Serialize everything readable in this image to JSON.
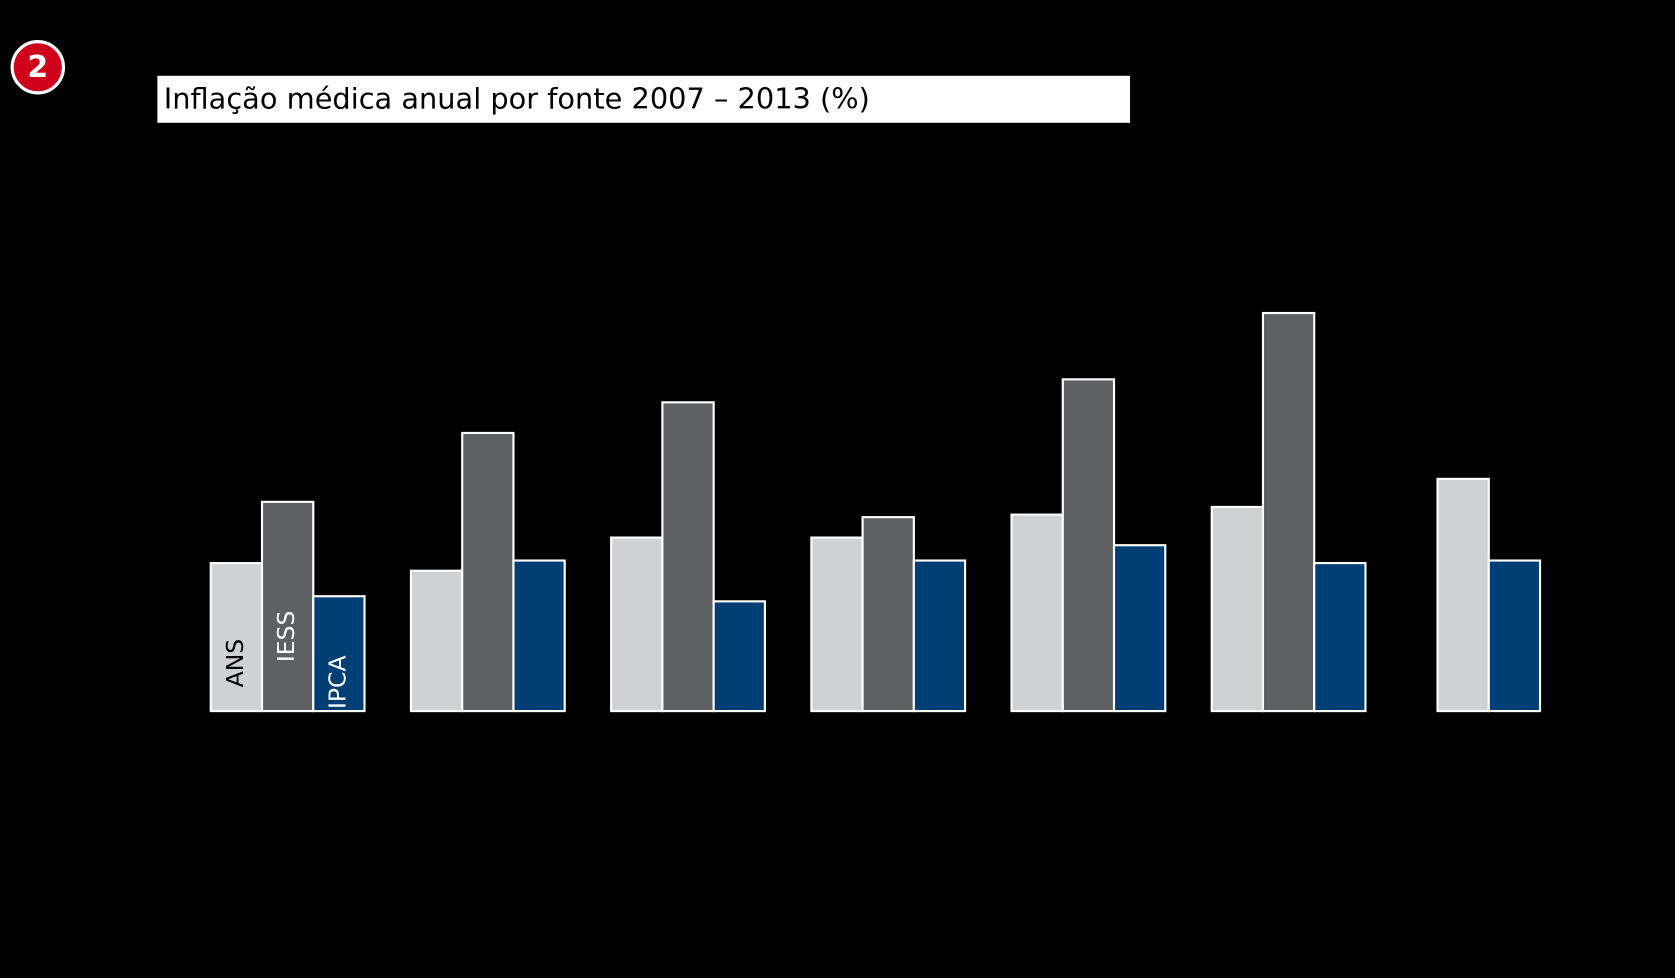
{
  "badge": "2",
  "chart_data": {
    "type": "bar",
    "title": "Inflação médica anual por fonte 2007 – 2013 (%)",
    "categories": [
      null,
      null,
      null,
      null,
      null,
      null,
      null
    ],
    "series": [
      {
        "name": "ANS",
        "color": "#d0d1d3",
        "values": [
          5.8,
          5.5,
          6.8,
          6.8,
          7.7,
          8.0,
          9.1
        ]
      },
      {
        "name": "IESS",
        "color": "#5f6062",
        "values": [
          8.2,
          10.9,
          12.1,
          7.6,
          13.0,
          15.6,
          null
        ]
      },
      {
        "name": "IPCA",
        "color": "#003f75",
        "values": [
          4.5,
          5.9,
          4.3,
          5.9,
          6.5,
          5.8,
          5.9
        ]
      }
    ]
  }
}
